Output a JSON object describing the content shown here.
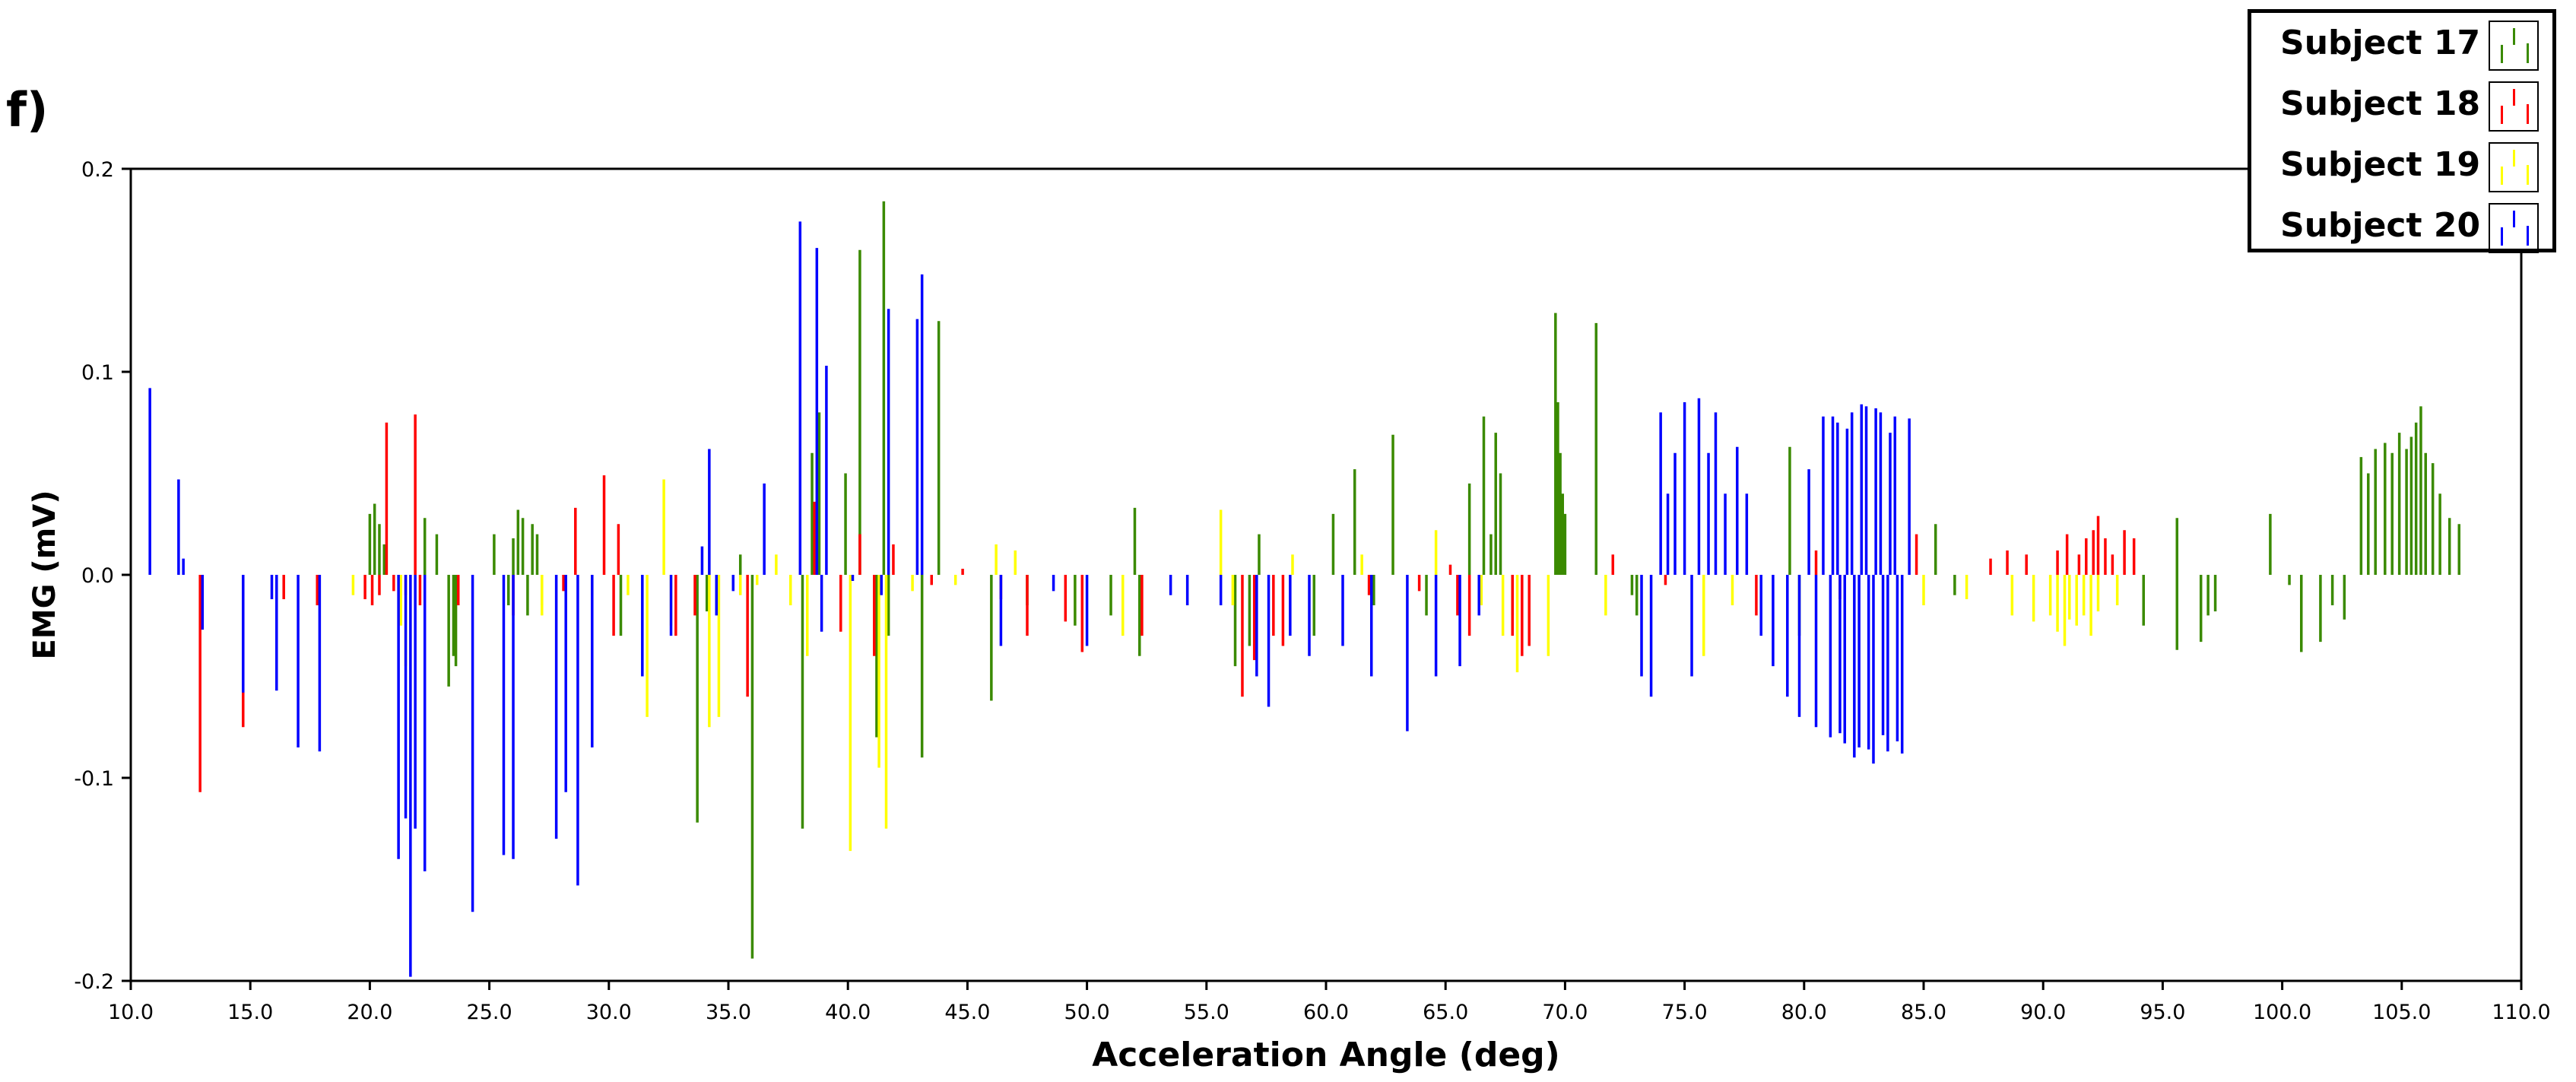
{
  "panel_label": "f)",
  "chart_data": {
    "type": "bar",
    "xlabel": "Acceleration Angle (deg)",
    "ylabel": "EMG (mV)",
    "xlim": [
      10,
      110
    ],
    "ylim": [
      -0.2,
      0.2
    ],
    "x_ticks": [
      "10.0",
      "15.0",
      "20.0",
      "25.0",
      "30.0",
      "35.0",
      "40.0",
      "45.0",
      "50.0",
      "55.0",
      "60.0",
      "65.0",
      "70.0",
      "75.0",
      "80.0",
      "85.0",
      "90.0",
      "95.0",
      "100.0",
      "105.0",
      "110.0"
    ],
    "y_ticks": [
      "0.2",
      "0.1",
      "0.0",
      "-0.1",
      "-0.2"
    ],
    "legend_position": "top-right",
    "series": [
      {
        "name": "Subject 17",
        "color": "#3a8a00",
        "points": [
          [
            20.0,
            0.03
          ],
          [
            20.2,
            0.035
          ],
          [
            20.4,
            0.025
          ],
          [
            20.6,
            0.015
          ],
          [
            22.3,
            0.028
          ],
          [
            22.8,
            0.02
          ],
          [
            23.3,
            -0.055
          ],
          [
            23.6,
            -0.045
          ],
          [
            23.5,
            -0.04
          ],
          [
            25.2,
            0.02
          ],
          [
            25.8,
            -0.015
          ],
          [
            26.0,
            0.018
          ],
          [
            26.2,
            0.032
          ],
          [
            26.4,
            0.028
          ],
          [
            26.6,
            -0.02
          ],
          [
            26.8,
            0.025
          ],
          [
            27.0,
            0.02
          ],
          [
            27.2,
            -0.015
          ],
          [
            30.5,
            -0.03
          ],
          [
            33.7,
            -0.122
          ],
          [
            34.1,
            -0.018
          ],
          [
            35.5,
            0.01
          ],
          [
            36.0,
            -0.189
          ],
          [
            38.1,
            -0.125
          ],
          [
            38.5,
            0.06
          ],
          [
            38.8,
            0.08
          ],
          [
            39.9,
            0.05
          ],
          [
            40.5,
            0.16
          ],
          [
            41.2,
            -0.08
          ],
          [
            41.5,
            0.184
          ],
          [
            41.7,
            -0.03
          ],
          [
            43.1,
            -0.09
          ],
          [
            43.8,
            0.125
          ],
          [
            46.0,
            -0.062
          ],
          [
            47.5,
            -0.015
          ],
          [
            49.5,
            -0.025
          ],
          [
            51.0,
            -0.02
          ],
          [
            52.0,
            0.033
          ],
          [
            52.2,
            -0.04
          ],
          [
            56.2,
            -0.045
          ],
          [
            56.8,
            -0.035
          ],
          [
            57.2,
            0.02
          ],
          [
            59.5,
            -0.03
          ],
          [
            60.3,
            0.03
          ],
          [
            61.2,
            0.052
          ],
          [
            62.0,
            -0.015
          ],
          [
            62.8,
            0.069
          ],
          [
            64.2,
            -0.02
          ],
          [
            66.0,
            0.045
          ],
          [
            66.6,
            0.078
          ],
          [
            66.9,
            0.02
          ],
          [
            67.1,
            0.07
          ],
          [
            67.3,
            0.05
          ],
          [
            67.8,
            -0.02
          ],
          [
            69.6,
            0.129
          ],
          [
            69.7,
            0.085
          ],
          [
            69.8,
            0.06
          ],
          [
            69.9,
            0.04
          ],
          [
            70.0,
            0.03
          ],
          [
            71.3,
            0.124
          ],
          [
            72.8,
            -0.01
          ],
          [
            73.0,
            -0.02
          ],
          [
            79.4,
            0.063
          ],
          [
            79.8,
            -0.03
          ],
          [
            85.5,
            0.025
          ],
          [
            86.3,
            -0.01
          ],
          [
            94.2,
            -0.025
          ],
          [
            95.6,
            -0.037
          ],
          [
            95.6,
            0.028
          ],
          [
            96.6,
            -0.033
          ],
          [
            96.9,
            -0.02
          ],
          [
            97.2,
            -0.018
          ],
          [
            99.5,
            0.03
          ],
          [
            100.3,
            -0.005
          ],
          [
            100.8,
            -0.038
          ],
          [
            101.6,
            -0.033
          ],
          [
            102.1,
            -0.015
          ],
          [
            102.6,
            -0.022
          ],
          [
            103.3,
            0.058
          ],
          [
            103.6,
            0.05
          ],
          [
            103.9,
            0.062
          ],
          [
            104.3,
            0.065
          ],
          [
            104.6,
            0.06
          ],
          [
            104.9,
            0.07
          ],
          [
            105.2,
            0.062
          ],
          [
            105.4,
            0.068
          ],
          [
            105.6,
            0.075
          ],
          [
            105.8,
            0.083
          ],
          [
            106.0,
            0.06
          ],
          [
            106.3,
            0.055
          ],
          [
            106.6,
            0.04
          ],
          [
            107.0,
            0.028
          ],
          [
            107.4,
            0.025
          ]
        ]
      },
      {
        "name": "Subject 18",
        "color": "#ff0000",
        "points": [
          [
            12.9,
            -0.107
          ],
          [
            14.7,
            -0.075
          ],
          [
            16.4,
            -0.012
          ],
          [
            17.8,
            -0.015
          ],
          [
            19.8,
            -0.012
          ],
          [
            20.1,
            -0.015
          ],
          [
            20.4,
            -0.01
          ],
          [
            20.7,
            0.075
          ],
          [
            21.0,
            -0.008
          ],
          [
            21.5,
            -0.01
          ],
          [
            21.9,
            0.079
          ],
          [
            22.1,
            -0.015
          ],
          [
            23.7,
            -0.015
          ],
          [
            26.0,
            -0.02
          ],
          [
            28.1,
            -0.008
          ],
          [
            28.6,
            0.033
          ],
          [
            29.8,
            0.049
          ],
          [
            30.2,
            -0.03
          ],
          [
            30.4,
            0.025
          ],
          [
            32.8,
            -0.03
          ],
          [
            33.6,
            -0.02
          ],
          [
            35.8,
            -0.06
          ],
          [
            38.6,
            0.036
          ],
          [
            39.7,
            -0.028
          ],
          [
            40.5,
            0.02
          ],
          [
            41.1,
            -0.04
          ],
          [
            41.9,
            0.015
          ],
          [
            43.5,
            -0.005
          ],
          [
            44.8,
            0.003
          ],
          [
            46.4,
            -0.012
          ],
          [
            47.5,
            -0.03
          ],
          [
            49.1,
            -0.023
          ],
          [
            49.8,
            -0.038
          ],
          [
            52.3,
            -0.03
          ],
          [
            56.5,
            -0.06
          ],
          [
            57.0,
            -0.042
          ],
          [
            57.8,
            -0.03
          ],
          [
            58.2,
            -0.035
          ],
          [
            61.8,
            -0.01
          ],
          [
            63.9,
            -0.008
          ],
          [
            65.2,
            0.005
          ],
          [
            65.5,
            -0.02
          ],
          [
            66.0,
            -0.03
          ],
          [
            67.8,
            -0.03
          ],
          [
            68.2,
            -0.04
          ],
          [
            68.5,
            -0.035
          ],
          [
            72.0,
            0.01
          ],
          [
            74.2,
            -0.005
          ],
          [
            78.0,
            -0.02
          ],
          [
            80.5,
            0.012
          ],
          [
            81.5,
            -0.012
          ],
          [
            84.7,
            0.02
          ],
          [
            87.8,
            0.008
          ],
          [
            88.5,
            0.012
          ],
          [
            89.3,
            0.01
          ],
          [
            90.6,
            0.012
          ],
          [
            91.0,
            0.02
          ],
          [
            91.5,
            0.01
          ],
          [
            91.8,
            0.018
          ],
          [
            92.1,
            0.022
          ],
          [
            92.3,
            0.029
          ],
          [
            92.6,
            0.018
          ],
          [
            92.9,
            0.01
          ],
          [
            93.4,
            0.022
          ],
          [
            93.8,
            0.018
          ]
        ]
      },
      {
        "name": "Subject 19",
        "color": "#ffff00",
        "points": [
          [
            19.3,
            -0.01
          ],
          [
            21.3,
            -0.025
          ],
          [
            21.5,
            -0.045
          ],
          [
            27.2,
            -0.02
          ],
          [
            29.3,
            -0.01
          ],
          [
            30.8,
            -0.01
          ],
          [
            31.6,
            -0.07
          ],
          [
            32.3,
            0.047
          ],
          [
            32.6,
            -0.025
          ],
          [
            34.2,
            -0.075
          ],
          [
            34.6,
            -0.07
          ],
          [
            35.5,
            -0.01
          ],
          [
            36.2,
            -0.005
          ],
          [
            37.0,
            0.01
          ],
          [
            37.6,
            -0.015
          ],
          [
            38.3,
            -0.04
          ],
          [
            40.1,
            -0.136
          ],
          [
            41.3,
            -0.095
          ],
          [
            41.6,
            -0.125
          ],
          [
            42.7,
            -0.008
          ],
          [
            44.5,
            -0.005
          ],
          [
            46.2,
            0.015
          ],
          [
            47.0,
            0.012
          ],
          [
            51.5,
            -0.03
          ],
          [
            55.6,
            0.032
          ],
          [
            56.1,
            -0.015
          ],
          [
            58.6,
            0.01
          ],
          [
            61.5,
            0.01
          ],
          [
            64.6,
            0.022
          ],
          [
            66.5,
            -0.015
          ],
          [
            67.4,
            -0.03
          ],
          [
            68.0,
            -0.048
          ],
          [
            69.3,
            -0.04
          ],
          [
            71.7,
            -0.02
          ],
          [
            75.8,
            -0.04
          ],
          [
            77.0,
            -0.015
          ],
          [
            85.0,
            -0.015
          ],
          [
            86.8,
            -0.012
          ],
          [
            88.7,
            -0.02
          ],
          [
            89.6,
            -0.023
          ],
          [
            90.3,
            -0.02
          ],
          [
            90.6,
            -0.028
          ],
          [
            90.9,
            -0.035
          ],
          [
            91.1,
            -0.022
          ],
          [
            91.4,
            -0.025
          ],
          [
            91.7,
            -0.02
          ],
          [
            92.0,
            -0.03
          ],
          [
            92.3,
            -0.018
          ],
          [
            93.1,
            -0.015
          ]
        ]
      },
      {
        "name": "Subject 20",
        "color": "#0000ff",
        "points": [
          [
            10.8,
            0.092
          ],
          [
            12.0,
            0.047
          ],
          [
            12.2,
            0.008
          ],
          [
            13.0,
            -0.027
          ],
          [
            14.7,
            -0.058
          ],
          [
            15.9,
            -0.012
          ],
          [
            16.1,
            -0.057
          ],
          [
            17.0,
            -0.085
          ],
          [
            17.9,
            -0.087
          ],
          [
            21.2,
            -0.14
          ],
          [
            21.5,
            -0.12
          ],
          [
            21.7,
            -0.198
          ],
          [
            21.9,
            -0.125
          ],
          [
            22.3,
            -0.146
          ],
          [
            24.3,
            -0.166
          ],
          [
            25.6,
            -0.138
          ],
          [
            26.0,
            -0.14
          ],
          [
            27.8,
            -0.13
          ],
          [
            28.2,
            -0.107
          ],
          [
            28.7,
            -0.153
          ],
          [
            29.3,
            -0.085
          ],
          [
            31.4,
            -0.05
          ],
          [
            32.6,
            -0.03
          ],
          [
            33.9,
            0.014
          ],
          [
            34.2,
            0.062
          ],
          [
            34.5,
            -0.02
          ],
          [
            35.2,
            -0.008
          ],
          [
            36.5,
            0.045
          ],
          [
            38.0,
            0.174
          ],
          [
            38.7,
            0.161
          ],
          [
            38.9,
            -0.028
          ],
          [
            39.1,
            0.103
          ],
          [
            40.2,
            -0.003
          ],
          [
            41.4,
            -0.01
          ],
          [
            41.7,
            0.131
          ],
          [
            42.9,
            0.126
          ],
          [
            43.1,
            0.148
          ],
          [
            46.4,
            -0.035
          ],
          [
            48.6,
            -0.008
          ],
          [
            50.0,
            -0.035
          ],
          [
            53.5,
            -0.01
          ],
          [
            54.2,
            -0.015
          ],
          [
            55.6,
            -0.015
          ],
          [
            57.1,
            -0.05
          ],
          [
            57.6,
            -0.065
          ],
          [
            58.5,
            -0.03
          ],
          [
            59.3,
            -0.04
          ],
          [
            60.7,
            -0.035
          ],
          [
            61.9,
            -0.05
          ],
          [
            63.4,
            -0.077
          ],
          [
            64.6,
            -0.05
          ],
          [
            65.6,
            -0.045
          ],
          [
            66.4,
            -0.02
          ],
          [
            73.2,
            -0.05
          ],
          [
            73.6,
            -0.06
          ],
          [
            74.0,
            0.08
          ],
          [
            74.3,
            0.04
          ],
          [
            74.6,
            0.06
          ],
          [
            75.0,
            0.085
          ],
          [
            75.3,
            -0.05
          ],
          [
            75.6,
            0.087
          ],
          [
            76.0,
            0.06
          ],
          [
            76.3,
            0.08
          ],
          [
            76.7,
            0.04
          ],
          [
            77.2,
            0.063
          ],
          [
            77.6,
            0.04
          ],
          [
            78.2,
            -0.03
          ],
          [
            78.7,
            -0.045
          ],
          [
            79.3,
            -0.06
          ],
          [
            79.8,
            -0.07
          ],
          [
            80.2,
            0.052
          ],
          [
            80.5,
            -0.075
          ],
          [
            80.8,
            0.078
          ],
          [
            81.1,
            -0.08
          ],
          [
            81.4,
            0.075
          ],
          [
            81.7,
            -0.083
          ],
          [
            82.0,
            0.08
          ],
          [
            82.3,
            -0.085
          ],
          [
            82.6,
            0.083
          ],
          [
            82.9,
            -0.093
          ],
          [
            83.2,
            0.08
          ],
          [
            83.5,
            -0.087
          ],
          [
            83.8,
            0.078
          ],
          [
            84.1,
            -0.088
          ],
          [
            84.4,
            0.077
          ],
          [
            81.2,
            0.078
          ],
          [
            81.5,
            -0.078
          ],
          [
            81.8,
            0.072
          ],
          [
            82.1,
            -0.09
          ],
          [
            82.4,
            0.084
          ],
          [
            82.7,
            -0.086
          ],
          [
            83.0,
            0.082
          ],
          [
            83.3,
            -0.079
          ],
          [
            83.6,
            0.07
          ],
          [
            83.9,
            -0.082
          ]
        ]
      }
    ]
  }
}
